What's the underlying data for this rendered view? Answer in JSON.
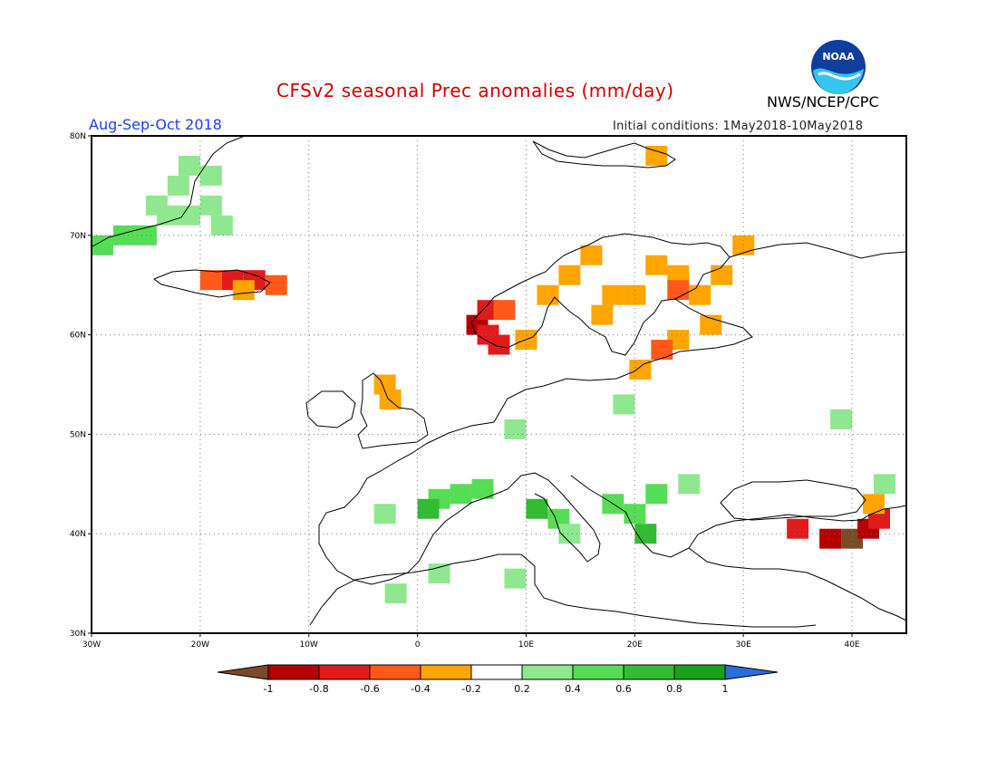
{
  "header": {
    "title": "CFSv2 seasonal Prec anomalies (mm/day)",
    "season": "Aug-Sep-Oct 2018",
    "initial_conditions": "Initial conditions: 1May2018-10May2018",
    "agency": "NWS/NCEP/CPC",
    "logo_text": "NOAA"
  },
  "map": {
    "lon_range": [
      -30,
      45
    ],
    "lat_range": [
      30,
      80
    ],
    "lat_ticks": [
      "30N",
      "40N",
      "50N",
      "60N",
      "70N",
      "80N"
    ],
    "lon_ticks": [
      "30W",
      "20W",
      "10W",
      "0",
      "10E",
      "20E",
      "30E",
      "40E"
    ],
    "grid": "dotted"
  },
  "legend": {
    "tick_labels": [
      "-1",
      "-0.8",
      "-0.6",
      "-0.4",
      "-0.2",
      "0.2",
      "0.4",
      "0.6",
      "0.8",
      "1"
    ],
    "colors": [
      "#7a4a2a",
      "#b40000",
      "#e01b1b",
      "#ff5a1a",
      "#ffa500",
      "#ffffff",
      "#8fe88f",
      "#55dd55",
      "#33bb33",
      "#1aa01a",
      "#2a6edc"
    ]
  },
  "anomaly_cells": [
    {
      "lon": -29,
      "lat": 69,
      "v": 0.5
    },
    {
      "lon": -27,
      "lat": 70,
      "v": 0.5
    },
    {
      "lon": -25,
      "lat": 70,
      "v": 0.4
    },
    {
      "lon": -23,
      "lat": 72,
      "v": 0.3
    },
    {
      "lon": -21,
      "lat": 72,
      "v": 0.3
    },
    {
      "lon": -22,
      "lat": 75,
      "v": 0.3
    },
    {
      "lon": -24,
      "lat": 73,
      "v": 0.3
    },
    {
      "lon": -19,
      "lat": 73,
      "v": 0.3
    },
    {
      "lon": -19,
      "lat": 76,
      "v": 0.3
    },
    {
      "lon": -21,
      "lat": 77,
      "v": 0.3
    },
    {
      "lon": -18,
      "lat": 71,
      "v": 0.3
    },
    {
      "lon": -19,
      "lat": 65.5,
      "v": -0.4
    },
    {
      "lon": -17,
      "lat": 65.5,
      "v": -0.6
    },
    {
      "lon": -15,
      "lat": 65.5,
      "v": -0.7
    },
    {
      "lon": -13,
      "lat": 65,
      "v": -0.5
    },
    {
      "lon": -16,
      "lat": 64.5,
      "v": -0.3
    },
    {
      "lon": -3,
      "lat": 55,
      "v": -0.3
    },
    {
      "lon": -2.5,
      "lat": 53.5,
      "v": -0.3
    },
    {
      "lon": 5.5,
      "lat": 61,
      "v": -0.8
    },
    {
      "lon": 6.5,
      "lat": 60,
      "v": -0.7
    },
    {
      "lon": 7.5,
      "lat": 59,
      "v": -0.6
    },
    {
      "lon": 6.5,
      "lat": 62.5,
      "v": -0.6
    },
    {
      "lon": 8,
      "lat": 62.5,
      "v": -0.4
    },
    {
      "lon": 10,
      "lat": 59.5,
      "v": -0.3
    },
    {
      "lon": 12,
      "lat": 64,
      "v": -0.3
    },
    {
      "lon": 14,
      "lat": 66,
      "v": -0.3
    },
    {
      "lon": 16,
      "lat": 68,
      "v": -0.3
    },
    {
      "lon": 18,
      "lat": 64,
      "v": -0.3
    },
    {
      "lon": 17,
      "lat": 62,
      "v": -0.3
    },
    {
      "lon": 20,
      "lat": 64,
      "v": -0.3
    },
    {
      "lon": 22,
      "lat": 67,
      "v": -0.3
    },
    {
      "lon": 24,
      "lat": 66,
      "v": -0.3
    },
    {
      "lon": 24,
      "lat": 64.5,
      "v": -0.5
    },
    {
      "lon": 26,
      "lat": 64,
      "v": -0.3
    },
    {
      "lon": 28,
      "lat": 66,
      "v": -0.3
    },
    {
      "lon": 30,
      "lat": 69,
      "v": -0.3
    },
    {
      "lon": 27,
      "lat": 61,
      "v": -0.3
    },
    {
      "lon": 24,
      "lat": 59.5,
      "v": -0.3
    },
    {
      "lon": 22.5,
      "lat": 58.5,
      "v": -0.5
    },
    {
      "lon": 20.5,
      "lat": 56.5,
      "v": -0.3
    },
    {
      "lon": 22,
      "lat": 78,
      "v": -0.3
    },
    {
      "lon": 2,
      "lat": 43.5,
      "v": 0.4
    },
    {
      "lon": 4,
      "lat": 44,
      "v": 0.5
    },
    {
      "lon": 1,
      "lat": 42.5,
      "v": 0.7
    },
    {
      "lon": 6,
      "lat": 44.5,
      "v": 0.4
    },
    {
      "lon": -3,
      "lat": 42,
      "v": 0.3
    },
    {
      "lon": 11,
      "lat": 42.5,
      "v": 0.7
    },
    {
      "lon": 13,
      "lat": 41.5,
      "v": 0.5
    },
    {
      "lon": 18,
      "lat": 43,
      "v": 0.4
    },
    {
      "lon": 20,
      "lat": 42,
      "v": 0.5
    },
    {
      "lon": 21,
      "lat": 40,
      "v": 0.6
    },
    {
      "lon": 22,
      "lat": 44,
      "v": 0.4
    },
    {
      "lon": 25,
      "lat": 45,
      "v": 0.3
    },
    {
      "lon": 9,
      "lat": 50.5,
      "v": 0.3
    },
    {
      "lon": 19,
      "lat": 53,
      "v": 0.3
    },
    {
      "lon": 39,
      "lat": 51.5,
      "v": 0.3
    },
    {
      "lon": 2,
      "lat": 36,
      "v": 0.3
    },
    {
      "lon": -2,
      "lat": 34,
      "v": 0.3
    },
    {
      "lon": 9,
      "lat": 35.5,
      "v": 0.3
    },
    {
      "lon": 14,
      "lat": 40,
      "v": 0.3
    },
    {
      "lon": 35,
      "lat": 40.5,
      "v": -0.6
    },
    {
      "lon": 38,
      "lat": 39.5,
      "v": -0.8
    },
    {
      "lon": 40,
      "lat": 39.5,
      "v": -1.0
    },
    {
      "lon": 41.5,
      "lat": 40.5,
      "v": -0.8
    },
    {
      "lon": 42.5,
      "lat": 41.5,
      "v": -0.6
    },
    {
      "lon": 42,
      "lat": 43,
      "v": -0.3
    },
    {
      "lon": 43,
      "lat": 45,
      "v": 0.3
    }
  ]
}
